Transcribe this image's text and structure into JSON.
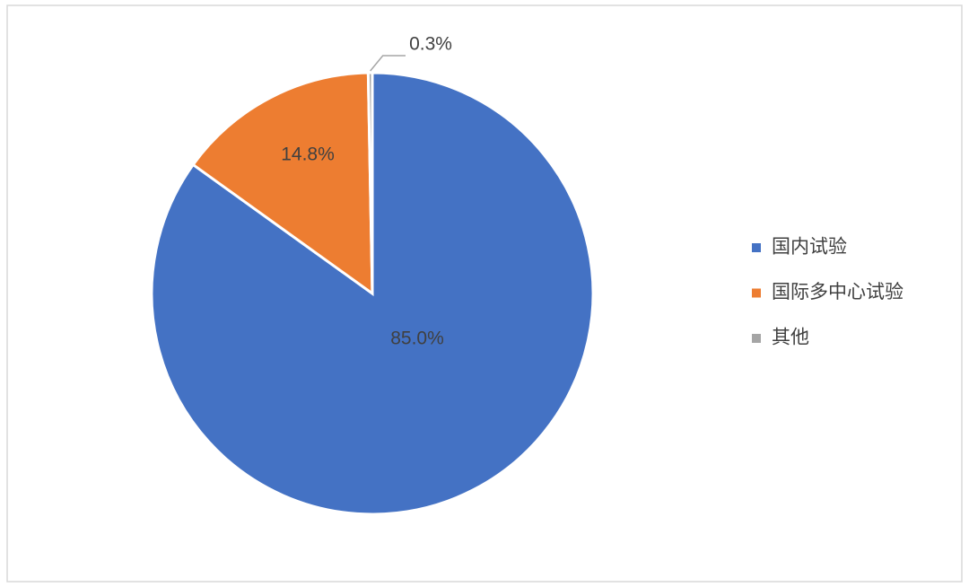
{
  "chart_data": {
    "type": "pie",
    "categories": [
      "国内试验",
      "国际多中心试验",
      "其他"
    ],
    "values": [
      85.0,
      14.8,
      0.3
    ],
    "value_labels": [
      "85.0%",
      "14.8%",
      "0.3%"
    ],
    "colors": [
      "#4472c4",
      "#ed7d31",
      "#a5a5a5"
    ],
    "legend": "right"
  }
}
